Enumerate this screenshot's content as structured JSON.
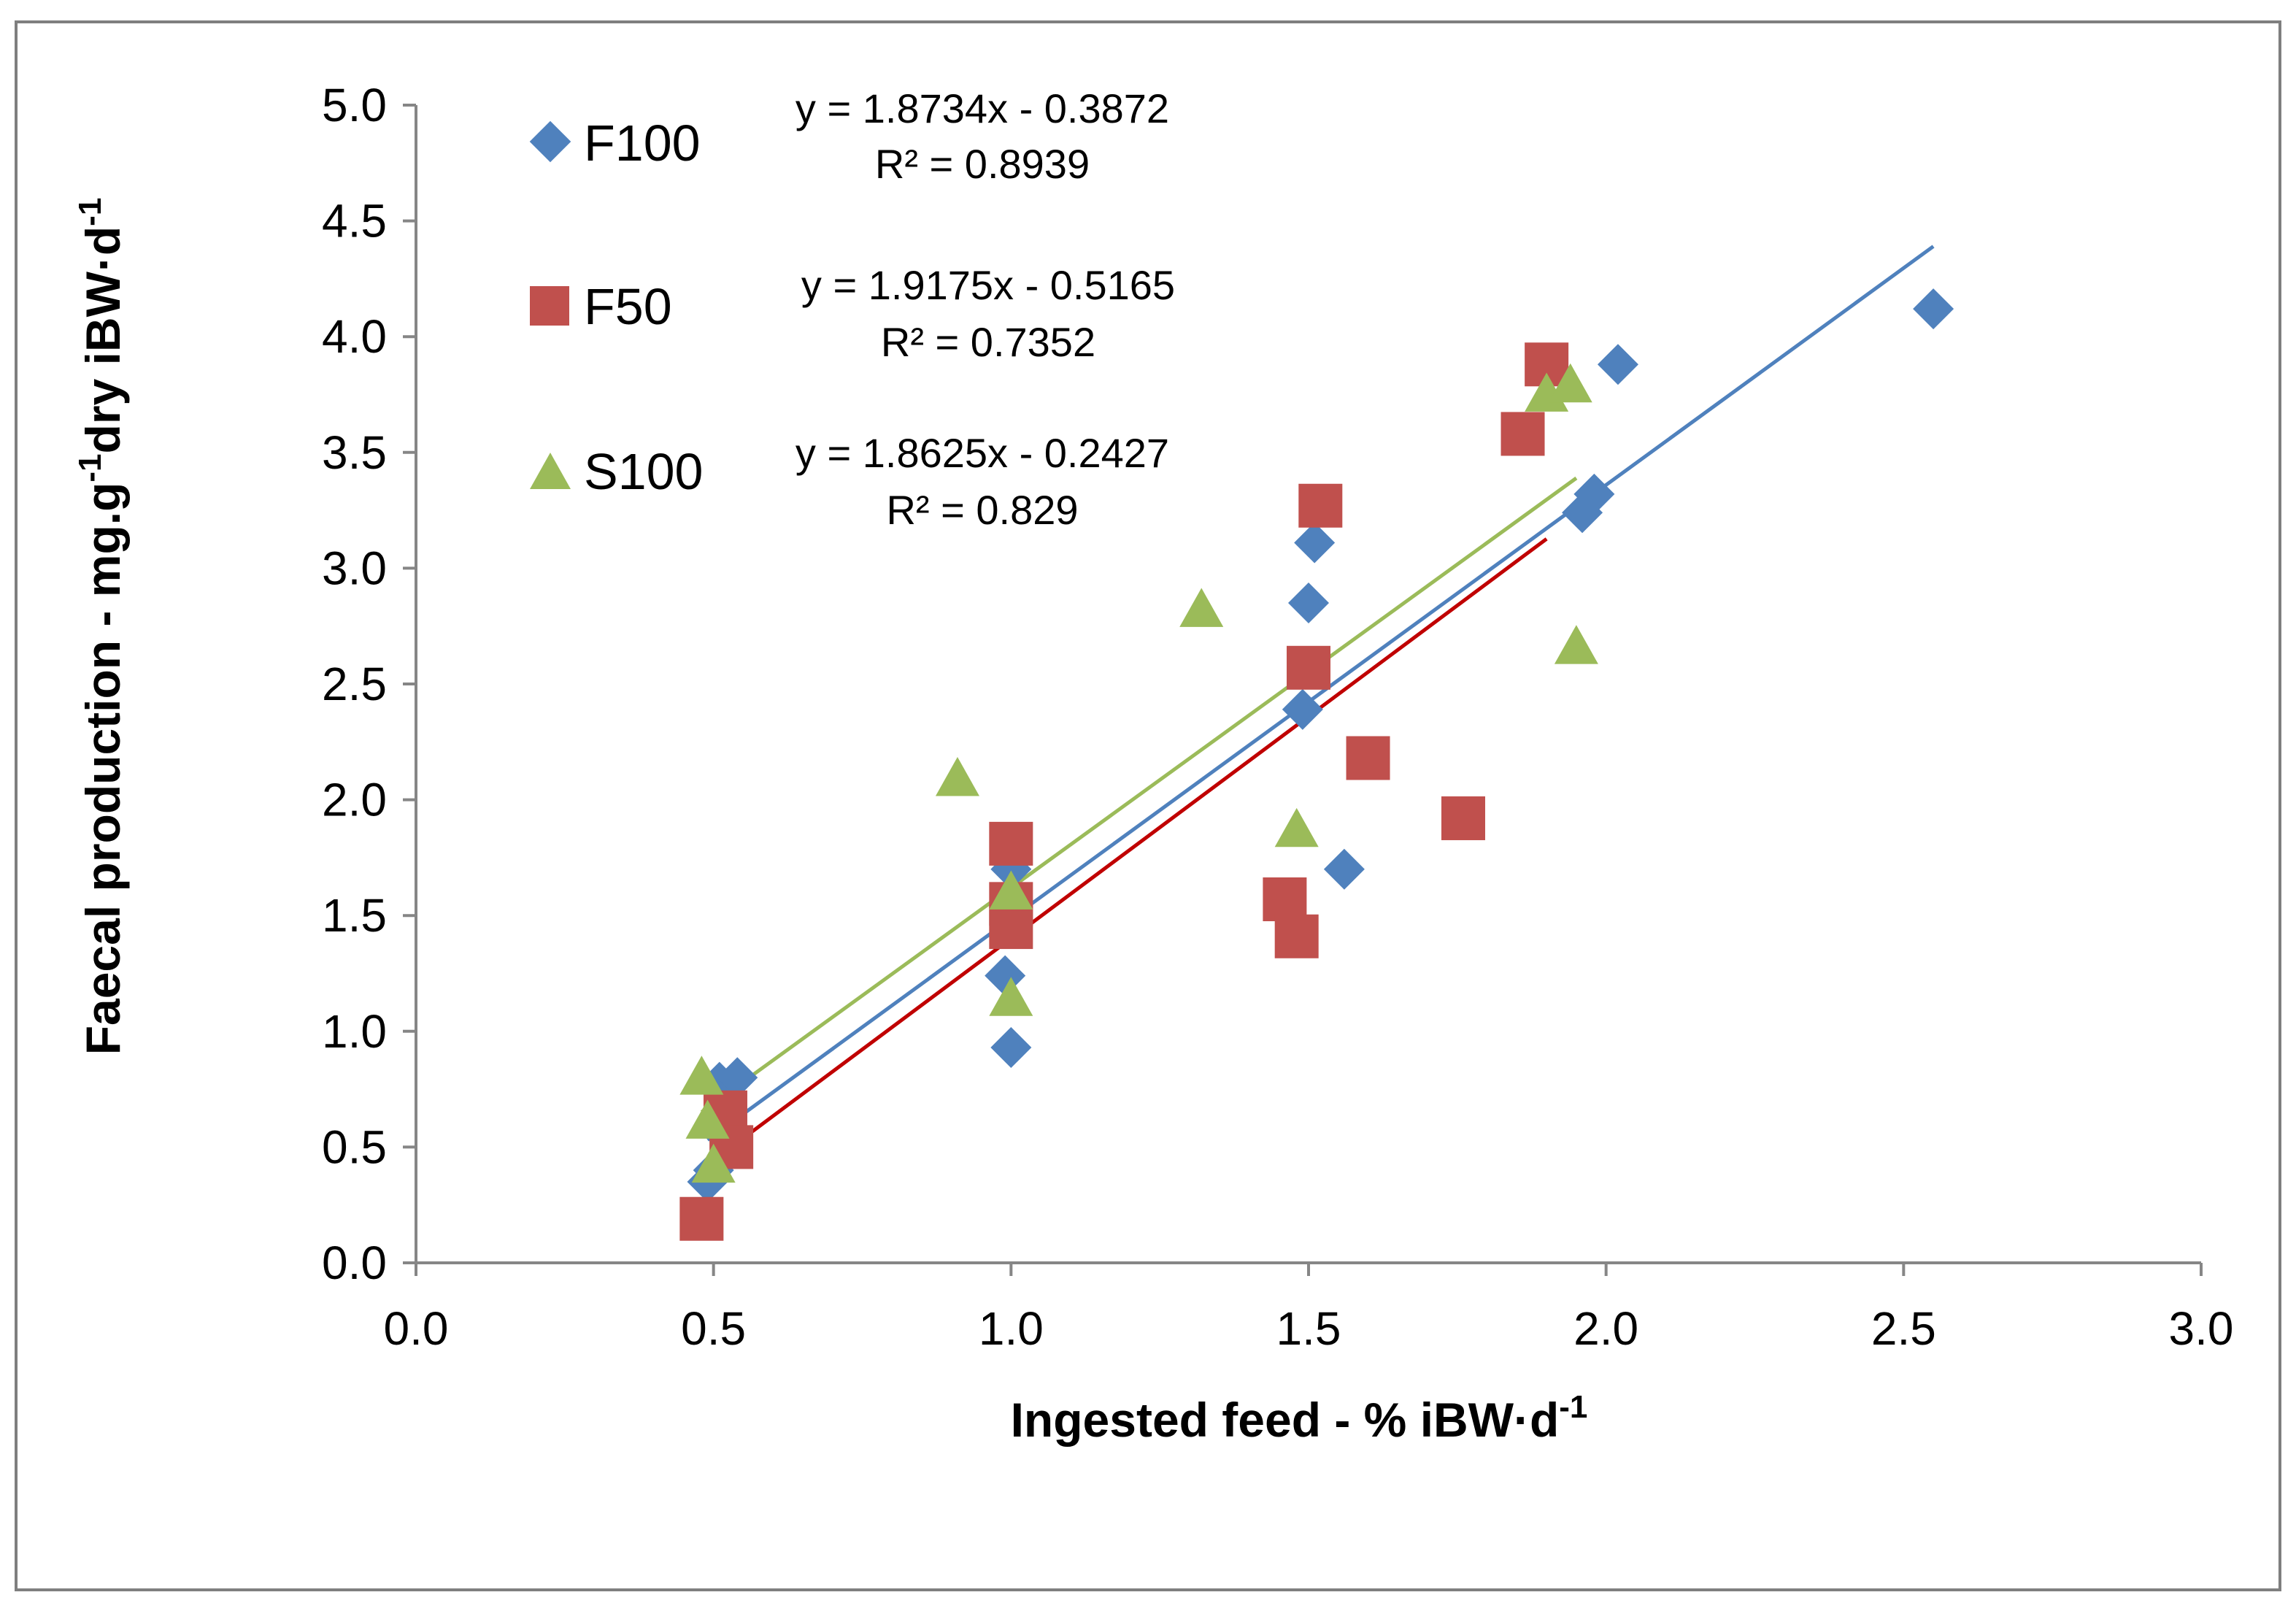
{
  "chart_data": {
    "type": "scatter",
    "xlabel": "Ingested feed - % iBW·d",
    "xlabel_sup": "-1",
    "ylabel_parts": [
      "Faecal production - mg.g",
      "-1",
      "dry iBW·d",
      "-1"
    ],
    "xlim": [
      0,
      3
    ],
    "ylim": [
      0,
      5
    ],
    "x_ticks": [
      0,
      0.5,
      1,
      1.5,
      2,
      2.5,
      3
    ],
    "x_tick_labels": [
      "0.0",
      "0.5",
      "1.0",
      "1.5",
      "2.0",
      "2.5",
      "3.0"
    ],
    "y_ticks": [
      0,
      0.5,
      1,
      1.5,
      2,
      2.5,
      3,
      3.5,
      4,
      4.5,
      5
    ],
    "y_tick_labels": [
      "0.0",
      "0.5",
      "1.0",
      "1.5",
      "2.0",
      "2.5",
      "3.0",
      "3.5",
      "4.0",
      "4.5",
      "5.0"
    ],
    "grid": false,
    "series": [
      {
        "name": "F100",
        "marker": "diamond",
        "color": "#4F81BD",
        "points": [
          [
            0.49,
            0.35
          ],
          [
            0.5,
            0.4
          ],
          [
            0.51,
            0.78
          ],
          [
            0.54,
            0.8
          ],
          [
            0.99,
            1.24
          ],
          [
            1.0,
            0.93
          ],
          [
            1.0,
            1.7
          ],
          [
            1.49,
            2.39
          ],
          [
            1.5,
            2.85
          ],
          [
            1.51,
            3.11
          ],
          [
            1.56,
            1.7
          ],
          [
            1.96,
            3.24
          ],
          [
            1.98,
            3.32
          ],
          [
            2.02,
            3.88
          ],
          [
            2.55,
            4.12
          ]
        ],
        "equation": "y = 1.8734x - 0.3872",
        "r2": "R² = 0.8939",
        "fit": {
          "slope": 1.8734,
          "intercept": -0.3872,
          "x_range": [
            0.49,
            2.55
          ]
        }
      },
      {
        "name": "F50",
        "marker": "square",
        "color": "#C0504D",
        "points": [
          [
            0.48,
            0.19
          ],
          [
            0.52,
            0.65
          ],
          [
            0.53,
            0.5
          ],
          [
            1.0,
            1.81
          ],
          [
            1.0,
            1.55
          ],
          [
            1.0,
            1.45
          ],
          [
            1.46,
            1.57
          ],
          [
            1.48,
            1.41
          ],
          [
            1.5,
            2.57
          ],
          [
            1.52,
            3.27
          ],
          [
            1.6,
            2.18
          ],
          [
            1.76,
            1.92
          ],
          [
            1.86,
            3.58
          ],
          [
            1.9,
            3.88
          ]
        ],
        "equation": "y = 1.9175x - 0.5165",
        "r2": "R² = 0.7352",
        "fit": {
          "slope": 1.9175,
          "intercept": -0.5165,
          "x_range": [
            0.48,
            1.9
          ]
        }
      },
      {
        "name": "S100",
        "marker": "triangle",
        "color": "#9BBB59",
        "points": [
          [
            0.48,
            0.8
          ],
          [
            0.49,
            0.61
          ],
          [
            0.5,
            0.42
          ],
          [
            0.91,
            2.09
          ],
          [
            1.0,
            1.14
          ],
          [
            1.0,
            1.6
          ],
          [
            1.32,
            2.82
          ],
          [
            1.48,
            1.87
          ],
          [
            1.9,
            3.75
          ],
          [
            1.94,
            3.79
          ],
          [
            1.95,
            2.66
          ]
        ],
        "equation": "y = 1.8625x - 0.2427",
        "r2": "R² = 0.829",
        "fit": {
          "slope": 1.8625,
          "intercept": -0.2427,
          "x_range": [
            0.48,
            1.95
          ]
        }
      }
    ],
    "trendline_colors": {
      "F100": "#4F81BD",
      "F50": "#C00000",
      "S100": "#9BBB59"
    }
  }
}
